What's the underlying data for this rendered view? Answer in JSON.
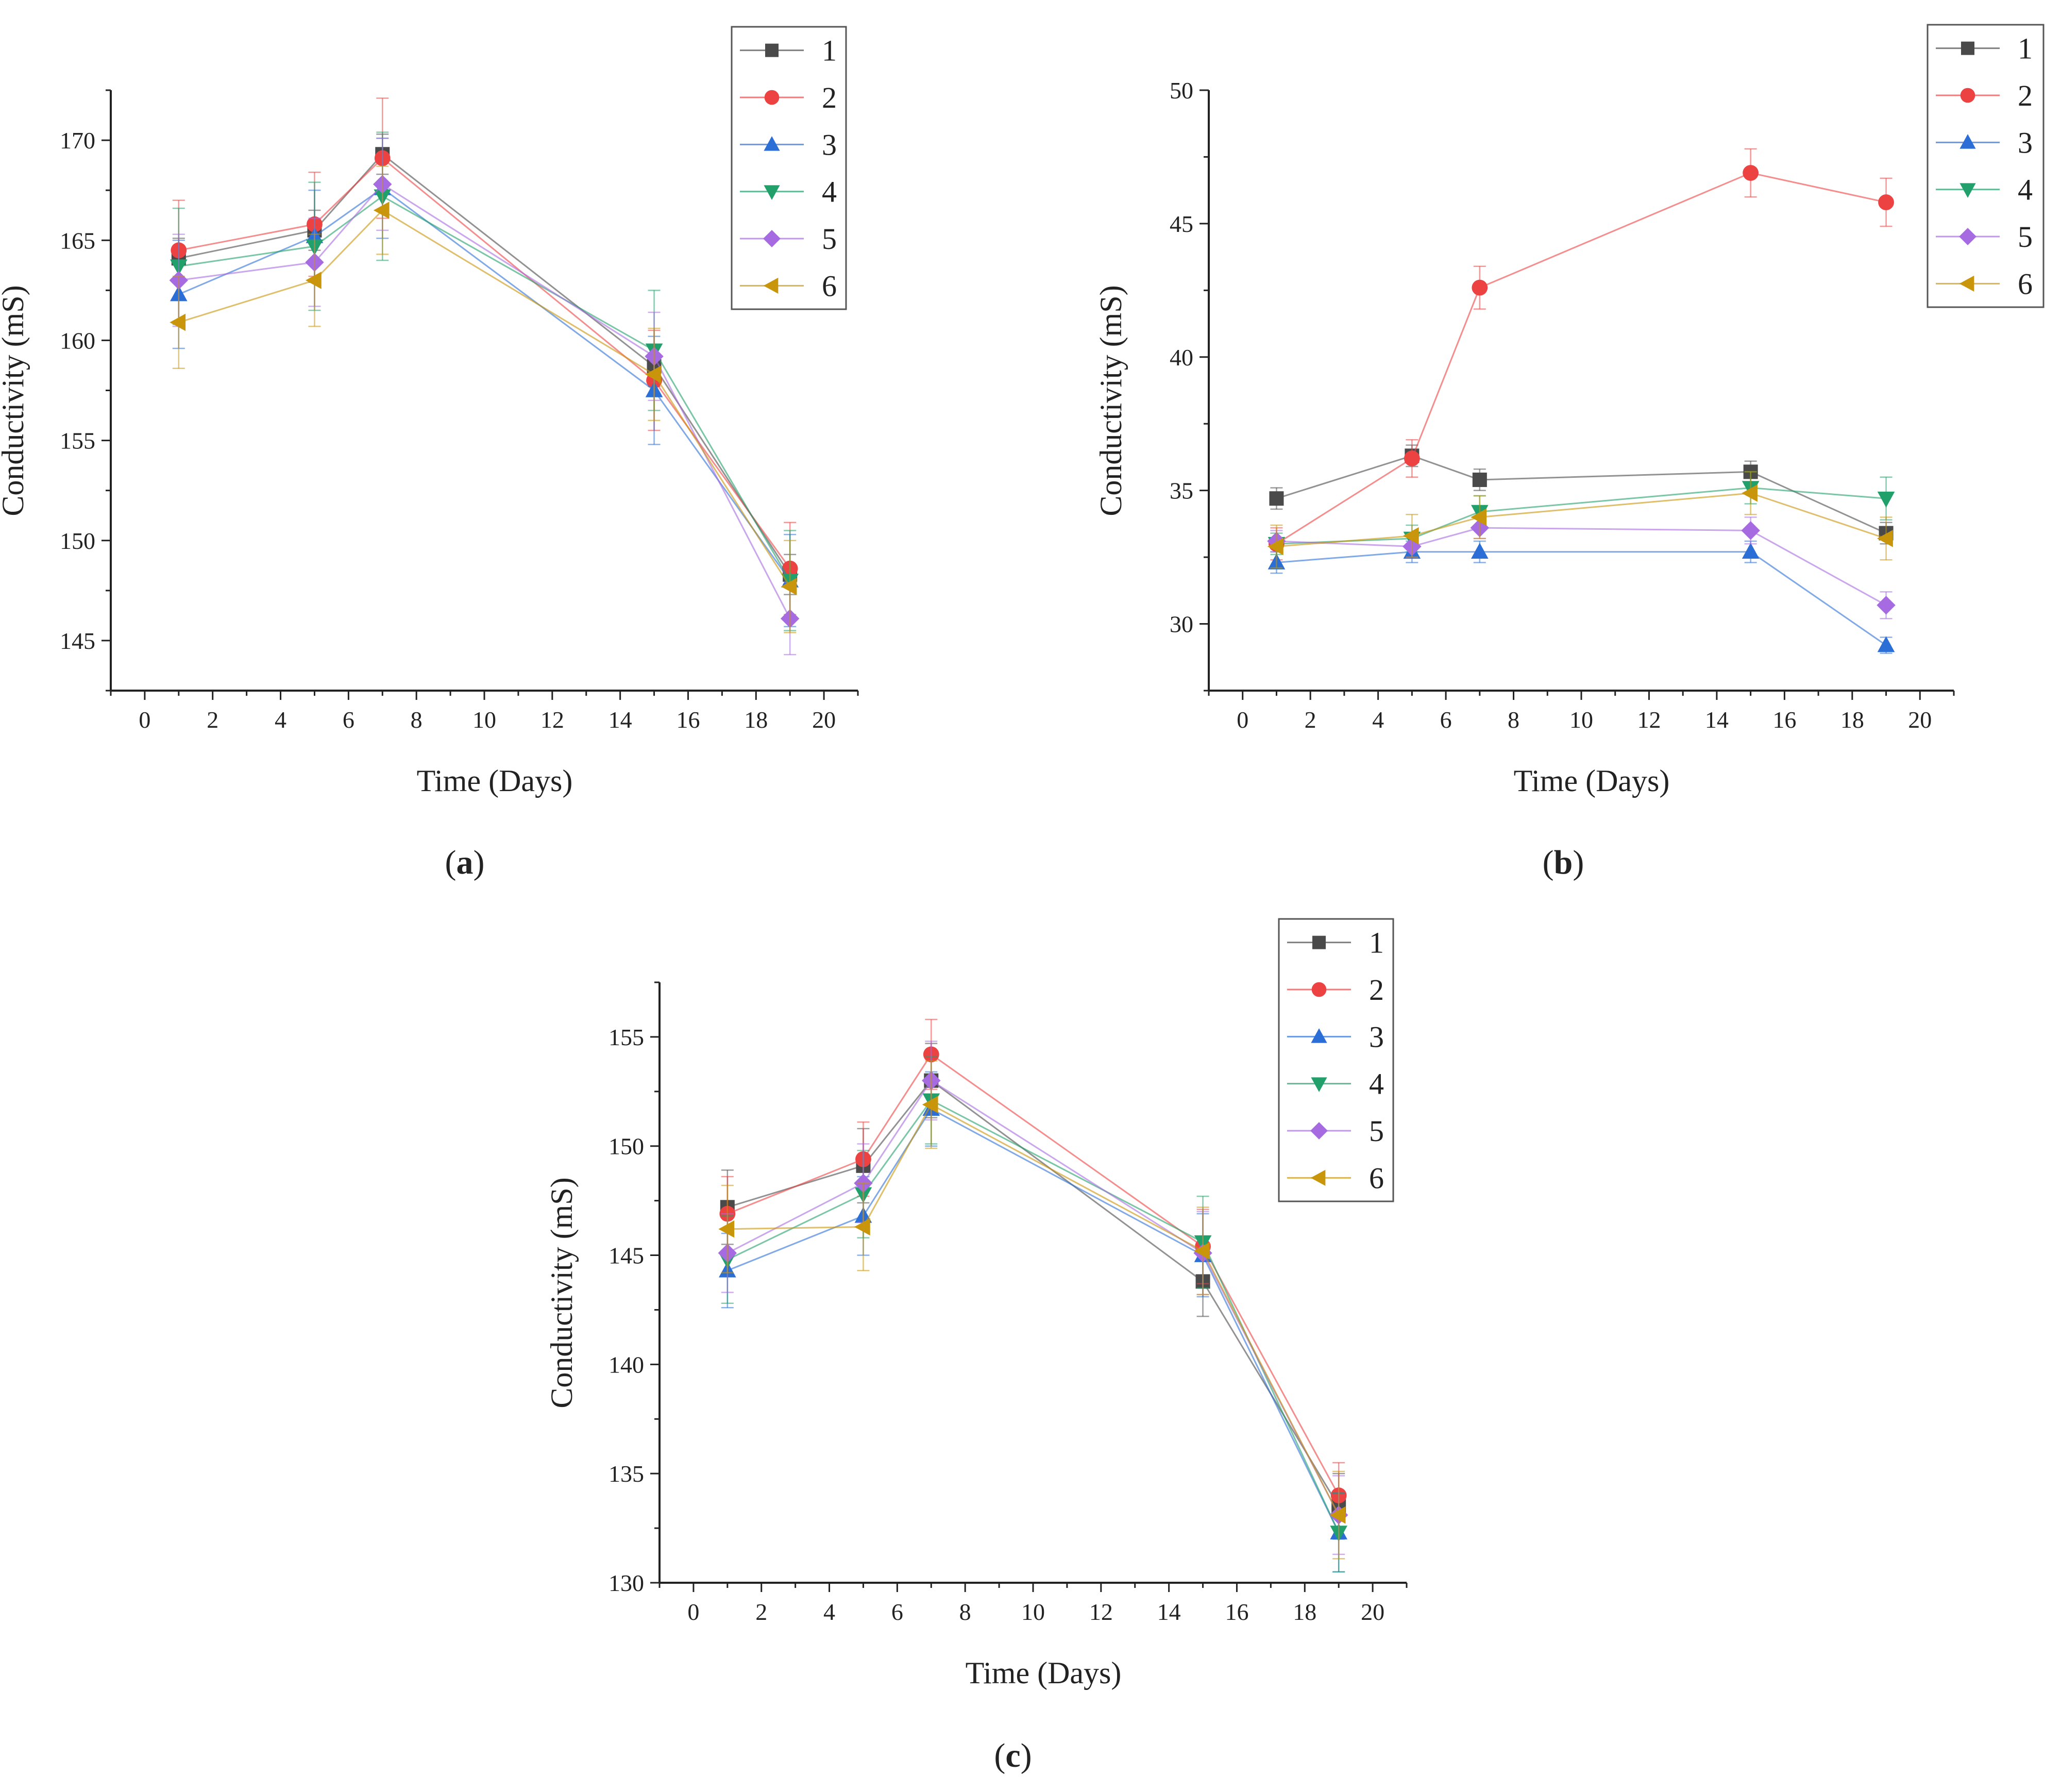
{
  "chart_data": [
    {
      "type": "line",
      "panel_label": "a",
      "xlabel": "Time (Days)",
      "ylabel": "Conductivity (mS)",
      "xlim": [
        -1,
        21
      ],
      "ylim": [
        142.5,
        172.5
      ],
      "xticks": [
        0,
        2,
        4,
        6,
        8,
        10,
        12,
        14,
        16,
        18,
        20
      ],
      "yticks": [
        145,
        150,
        155,
        160,
        165,
        170
      ],
      "legend_position": "top-right",
      "grid": false,
      "x": [
        1,
        5,
        7,
        15,
        19
      ],
      "series": [
        {
          "name": "1",
          "marker": "square",
          "color": "#4a4a4a",
          "values": [
            164.1,
            165.5,
            169.3,
            158.7,
            148.3
          ],
          "errors": [
            1.0,
            1.0,
            1.0,
            1.0,
            1.0
          ]
        },
        {
          "name": "2",
          "marker": "circle",
          "color": "#ec4242",
          "values": [
            164.5,
            165.8,
            169.1,
            158.0,
            148.6
          ],
          "errors": [
            2.5,
            2.6,
            3.0,
            2.5,
            2.3
          ]
        },
        {
          "name": "3",
          "marker": "triangle-up",
          "color": "#2b6fd6",
          "values": [
            162.3,
            165.2,
            167.6,
            157.5,
            148.0
          ],
          "errors": [
            2.7,
            2.3,
            2.5,
            2.7,
            2.3
          ]
        },
        {
          "name": "4",
          "marker": "triangle-down",
          "color": "#22a06b",
          "values": [
            163.7,
            164.7,
            167.2,
            159.5,
            148.0
          ],
          "errors": [
            2.9,
            3.2,
            3.2,
            3.0,
            2.5
          ]
        },
        {
          "name": "5",
          "marker": "diamond",
          "color": "#a66be0",
          "values": [
            163.0,
            163.9,
            167.8,
            159.2,
            146.1
          ],
          "errors": [
            2.3,
            2.2,
            2.3,
            2.2,
            1.8
          ]
        },
        {
          "name": "6",
          "marker": "triangle-left",
          "color": "#c9950a",
          "values": [
            160.9,
            163.0,
            166.5,
            158.3,
            147.7
          ],
          "errors": [
            2.3,
            2.3,
            2.2,
            2.3,
            2.3
          ]
        }
      ]
    },
    {
      "type": "line",
      "panel_label": "b",
      "xlabel": "Time (Days)",
      "ylabel": "Conductivity (mS)",
      "xlim": [
        -1,
        21
      ],
      "ylim": [
        27.5,
        50
      ],
      "xticks": [
        0,
        2,
        4,
        6,
        8,
        10,
        12,
        14,
        16,
        18,
        20
      ],
      "yticks": [
        30,
        35,
        40,
        45,
        50
      ],
      "legend_position": "top-right",
      "grid": false,
      "x": [
        1,
        5,
        7,
        15,
        19
      ],
      "series": [
        {
          "name": "1",
          "marker": "square",
          "color": "#4a4a4a",
          "values": [
            34.7,
            36.3,
            35.4,
            35.7,
            33.4
          ],
          "errors": [
            0.4,
            0.4,
            0.4,
            0.4,
            0.4
          ]
        },
        {
          "name": "2",
          "marker": "circle",
          "color": "#ec4242",
          "values": [
            33.0,
            36.2,
            42.6,
            46.9,
            45.8
          ],
          "errors": [
            0.6,
            0.7,
            0.8,
            0.9,
            0.9
          ]
        },
        {
          "name": "3",
          "marker": "triangle-up",
          "color": "#2b6fd6",
          "values": [
            32.3,
            32.7,
            32.7,
            32.7,
            29.2
          ],
          "errors": [
            0.4,
            0.4,
            0.4,
            0.4,
            0.3
          ]
        },
        {
          "name": "4",
          "marker": "triangle-down",
          "color": "#22a06b",
          "values": [
            33.0,
            33.2,
            34.2,
            35.1,
            34.7
          ],
          "errors": [
            0.4,
            0.5,
            0.6,
            0.6,
            0.8
          ]
        },
        {
          "name": "5",
          "marker": "diamond",
          "color": "#a66be0",
          "values": [
            33.1,
            32.9,
            33.6,
            33.5,
            30.7
          ],
          "errors": [
            0.4,
            0.4,
            0.4,
            0.5,
            0.5
          ]
        },
        {
          "name": "6",
          "marker": "triangle-left",
          "color": "#c9950a",
          "values": [
            32.9,
            33.3,
            34.0,
            34.9,
            33.2
          ],
          "errors": [
            0.8,
            0.8,
            0.8,
            0.8,
            0.8
          ]
        }
      ]
    },
    {
      "type": "line",
      "panel_label": "c",
      "xlabel": "Time (Days)",
      "ylabel": "Conductivity (mS)",
      "xlim": [
        -1,
        21
      ],
      "ylim": [
        130,
        157.5
      ],
      "xticks": [
        0,
        2,
        4,
        6,
        8,
        10,
        12,
        14,
        16,
        18,
        20
      ],
      "yticks": [
        130,
        135,
        140,
        145,
        150,
        155
      ],
      "legend_position": "top-right",
      "grid": false,
      "x": [
        1,
        5,
        7,
        15,
        19
      ],
      "series": [
        {
          "name": "1",
          "marker": "square",
          "color": "#4a4a4a",
          "values": [
            147.2,
            149.1,
            153.0,
            143.8,
            133.5
          ],
          "errors": [
            1.7,
            1.7,
            1.7,
            1.6,
            1.5
          ]
        },
        {
          "name": "2",
          "marker": "circle",
          "color": "#ec4242",
          "values": [
            146.9,
            149.4,
            154.2,
            145.4,
            134.0
          ],
          "errors": [
            1.7,
            1.7,
            1.6,
            1.7,
            1.5
          ]
        },
        {
          "name": "3",
          "marker": "triangle-up",
          "color": "#2b6fd6",
          "values": [
            144.3,
            146.8,
            151.7,
            145.0,
            132.3
          ],
          "errors": [
            1.7,
            1.8,
            1.7,
            1.9,
            1.8
          ]
        },
        {
          "name": "4",
          "marker": "triangle-down",
          "color": "#22a06b",
          "values": [
            144.8,
            147.8,
            152.1,
            145.6,
            132.3
          ],
          "errors": [
            2.0,
            2.0,
            2.0,
            2.1,
            1.8
          ]
        },
        {
          "name": "5",
          "marker": "diamond",
          "color": "#a66be0",
          "values": [
            145.1,
            148.3,
            153.0,
            145.1,
            133.1
          ],
          "errors": [
            1.8,
            1.8,
            1.8,
            1.9,
            1.8
          ]
        },
        {
          "name": "6",
          "marker": "triangle-left",
          "color": "#c9950a",
          "values": [
            146.2,
            146.3,
            151.9,
            145.2,
            133.1
          ],
          "errors": [
            2.0,
            2.0,
            2.0,
            2.0,
            2.0
          ]
        }
      ]
    }
  ]
}
